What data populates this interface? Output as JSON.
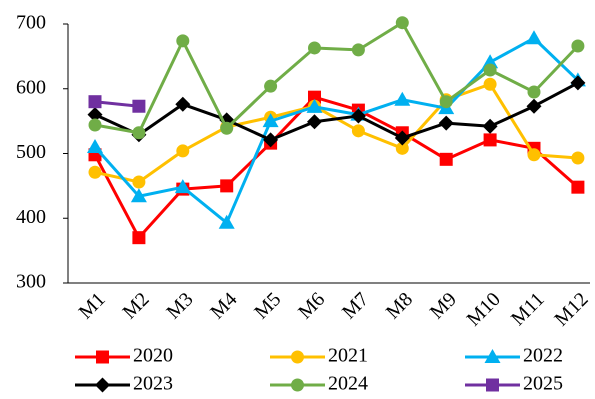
{
  "chart_data": {
    "type": "line",
    "categories": [
      "M1",
      "M2",
      "M3",
      "M4",
      "M5",
      "M6",
      "M7",
      "M8",
      "M9",
      "M10",
      "M11",
      "M12"
    ],
    "series": [
      {
        "name": "2020",
        "color": "#ff0000",
        "marker": "square",
        "values": [
          498,
          370,
          445,
          450,
          516,
          587,
          567,
          532,
          491,
          521,
          508,
          448
        ]
      },
      {
        "name": "2021",
        "color": "#ffc000",
        "marker": "circle",
        "values": [
          471,
          456,
          504,
          541,
          556,
          573,
          535,
          508,
          583,
          607,
          498,
          493
        ]
      },
      {
        "name": "2022",
        "color": "#00b0f0",
        "marker": "triangle",
        "values": [
          510,
          434,
          448,
          393,
          550,
          572,
          560,
          583,
          570,
          641,
          678,
          613
        ]
      },
      {
        "name": "2023",
        "color": "#000000",
        "marker": "diamond",
        "values": [
          560,
          529,
          576,
          552,
          521,
          549,
          558,
          524,
          547,
          542,
          573,
          609
        ]
      },
      {
        "name": "2024",
        "color": "#70ad47",
        "marker": "circle",
        "values": [
          544,
          532,
          674,
          539,
          604,
          663,
          660,
          702,
          580,
          629,
          595,
          666
        ]
      },
      {
        "name": "2025",
        "color": "#7030a0",
        "marker": "square",
        "values": [
          580,
          573,
          null,
          null,
          null,
          null,
          null,
          null,
          null,
          null,
          null,
          null
        ]
      }
    ],
    "ylim": [
      300,
      700
    ],
    "yticks": [
      300,
      400,
      500,
      600,
      700
    ],
    "grid": false,
    "legend": "bottom"
  }
}
